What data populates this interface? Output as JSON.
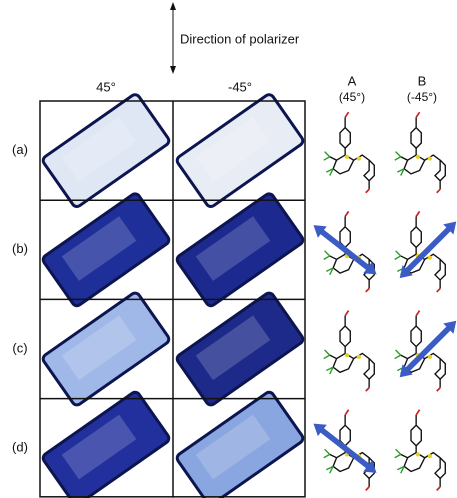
{
  "header": {
    "label": "Direction of polarizer"
  },
  "columns": [
    "45°",
    "-45°"
  ],
  "molecule_columns": [
    {
      "letter": "A",
      "angle": "(45°)"
    },
    {
      "letter": "B",
      "angle": "(-45°)"
    }
  ],
  "rows": [
    "(a)",
    "(b)",
    "(c)",
    "(d)"
  ]
}
